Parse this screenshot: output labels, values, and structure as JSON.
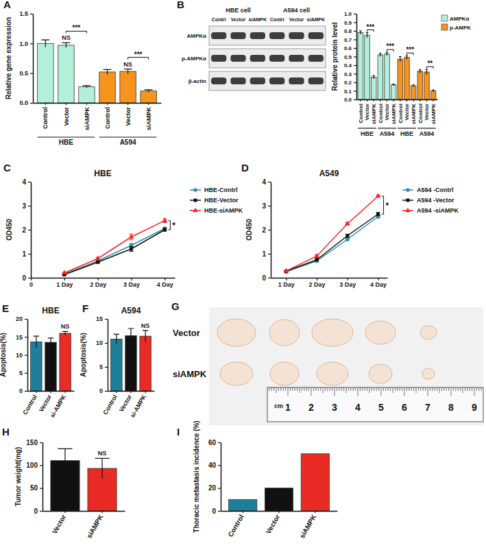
{
  "chart_data": [
    {
      "type": "bar",
      "panel": "A",
      "y_label": "Relative gene expression",
      "categories": [
        "Control",
        "Vector",
        "siAMPK",
        "Control",
        "Vector",
        "siAMPK"
      ],
      "groups": [
        {
          "label": "HBE",
          "from": 0,
          "to": 2
        },
        {
          "label": "A594",
          "from": 3,
          "to": 5
        }
      ],
      "values": [
        1,
        0.97,
        0.27,
        0.52,
        0.53,
        0.2
      ],
      "errors": [
        0.06,
        0.04,
        0.02,
        0.04,
        0.04,
        0.02
      ],
      "colors": [
        "#b3f0d9",
        "#b3f0d9",
        "#b3f0d9",
        "#f7941d",
        "#f7941d",
        "#f7941d"
      ],
      "ylim": [
        0,
        1.5
      ],
      "yticks": [
        {
          "value": 0,
          "label": "0.0"
        },
        0.5,
        {
          "value": 1,
          "label": "1.0"
        },
        1.5
      ],
      "annotations": [
        {
          "text": "NS",
          "from": 1,
          "to": 1
        },
        {
          "text": "***",
          "from": 1,
          "to": 2
        },
        {
          "text": "NS",
          "from": 4,
          "to": 4
        },
        {
          "text": "***",
          "from": 4,
          "to": 5
        }
      ]
    },
    {
      "type": "blot",
      "panel": "B",
      "columns": [
        "Contrl",
        "Vector",
        "siAMPK",
        "Contrl",
        "Vector",
        "siAMPK"
      ],
      "groups": [
        {
          "label": "HBE cell",
          "from": 0,
          "to": 2
        },
        {
          "label": "A594 cell",
          "from": 3,
          "to": 5
        }
      ],
      "rows": [
        "AMPKα",
        "p-AMPKα",
        "β-actin"
      ]
    },
    {
      "type": "bar",
      "y_label": "Relative protein level",
      "categories": [
        "Control",
        "Vector",
        "siAMPK",
        "Control",
        "Vector",
        "siAMPK",
        "Control",
        "Vector",
        "siAMPK",
        "Control",
        "Vector",
        "siAMPK"
      ],
      "groups": [
        {
          "label": "HBE",
          "from": 0,
          "to": 2
        },
        {
          "label": "A594",
          "from": 3,
          "to": 5
        },
        {
          "label": "HBE",
          "from": 6,
          "to": 8
        },
        {
          "label": "A594",
          "from": 9,
          "to": 11
        }
      ],
      "series": [
        {
          "name": "AMPKα",
          "color": "#b3f0d9",
          "values": [
            0.78,
            0.75,
            0.26,
            0.52,
            0.53,
            0.17,
            null,
            null,
            null,
            null,
            null,
            null
          ],
          "errors": [
            0.02,
            0.03,
            0.02,
            0.02,
            0.02,
            0.01,
            null,
            null,
            null,
            null,
            null,
            null
          ]
        },
        {
          "name": "p-AMPK",
          "color": "#f7941d",
          "values": [
            null,
            null,
            null,
            null,
            null,
            null,
            0.47,
            0.49,
            0.16,
            0.33,
            0.32,
            0.1
          ],
          "errors": [
            null,
            null,
            null,
            null,
            null,
            null,
            0.03,
            0.02,
            0.01,
            0.02,
            0.03,
            0.01
          ]
        }
      ],
      "ylim": [
        0,
        1
      ],
      "yticks": [
        {
          "value": 0,
          "label": "0.0"
        },
        0.1,
        0.2,
        0.3,
        0.4,
        0.5,
        0.6,
        0.7,
        0.8,
        0.9,
        {
          "value": 1,
          "label": "1.0"
        }
      ],
      "legend": "top-right",
      "annotations": [
        {
          "text": "***",
          "from": 1,
          "to": 2
        },
        {
          "text": "***",
          "from": 4,
          "to": 5
        },
        {
          "text": "***",
          "from": 7,
          "to": 8
        },
        {
          "text": "**",
          "from": 10,
          "to": 11
        }
      ]
    },
    {
      "type": "line",
      "panel": "C",
      "title": "HBE",
      "y_label": "OD450",
      "x": [
        1,
        2,
        3,
        4
      ],
      "xlim": [
        0,
        4.3
      ],
      "xticks": [
        0,
        {
          "value": 1,
          "label": "1 Day"
        },
        {
          "value": 2,
          "label": "2 Day"
        },
        {
          "value": 3,
          "label": "3 Day"
        },
        {
          "value": 4,
          "label": "4 Day"
        }
      ],
      "ylim": [
        0,
        4
      ],
      "yticks": [
        0,
        1,
        2,
        3,
        4
      ],
      "series": [
        {
          "name": "HBE-Contrl",
          "color": "#2f8ea8",
          "marker": "circle",
          "values": [
            0.15,
            0.7,
            1.35,
            2.05
          ],
          "errors": [
            0.02,
            0.05,
            0.08,
            0.05
          ]
        },
        {
          "name": "HBE-Vector",
          "color": "#111111",
          "marker": "square",
          "values": [
            0.13,
            0.65,
            1.2,
            2.0
          ],
          "errors": [
            0.02,
            0.04,
            0.1,
            0.06
          ]
        },
        {
          "name": "HBE-siAMPK",
          "color": "#ff2020",
          "marker": "triangle",
          "values": [
            0.2,
            0.8,
            1.7,
            2.38
          ],
          "errors": [
            0.02,
            0.05,
            0.12,
            0.08
          ]
        }
      ],
      "legend": "right",
      "annotations": [
        {
          "text": "*",
          "series": [
            1,
            2
          ],
          "at": 3
        }
      ]
    },
    {
      "type": "line",
      "panel": "D",
      "title": "A549",
      "y_label": "OD450",
      "x": [
        1,
        2,
        3,
        4
      ],
      "xlim": [
        0.5,
        4.3
      ],
      "xticks": [
        {
          "value": 1,
          "label": "1 Day"
        },
        {
          "value": 2,
          "label": "2 Day"
        },
        {
          "value": 3,
          "label": "3 Day"
        },
        {
          "value": 4,
          "label": "4 Day"
        }
      ],
      "ylim": [
        0,
        4
      ],
      "yticks": [
        0,
        1,
        2,
        3,
        4
      ],
      "series": [
        {
          "name": "A594 -Contrl",
          "color": "#2f8ea8",
          "marker": "circle",
          "values": [
            0.25,
            0.7,
            1.6,
            2.55
          ],
          "errors": [
            0.02,
            0.04,
            0.05,
            0.06
          ]
        },
        {
          "name": "A594 -Vector",
          "color": "#111111",
          "marker": "square",
          "values": [
            0.27,
            0.75,
            1.75,
            2.65
          ],
          "errors": [
            0.02,
            0.05,
            0.06,
            0.07
          ]
        },
        {
          "name": "A594 -siAMPK",
          "color": "#ff2020",
          "marker": "triangle",
          "values": [
            0.28,
            0.9,
            2.25,
            3.4
          ],
          "errors": [
            0.02,
            0.06,
            0.05,
            0.04
          ]
        }
      ],
      "legend": "right",
      "annotations": [
        {
          "text": "*",
          "series": [
            1,
            2
          ],
          "at": 3
        }
      ]
    },
    {
      "type": "bar",
      "panel": "E",
      "title": "HBE",
      "y_label": "Apoptosis(%)",
      "categories": [
        "Control",
        "Vector",
        "si-AMPK"
      ],
      "values": [
        13.6,
        13.5,
        16.0
      ],
      "errors": [
        1.6,
        1.2,
        0.5
      ],
      "colors": [
        "#1f7f98",
        "#111111",
        "#e82c25"
      ],
      "ylim": [
        0,
        20
      ],
      "yticks": [
        0,
        5,
        10,
        15,
        20
      ],
      "annotations": [
        {
          "text": "NS",
          "from": 2,
          "to": 2
        }
      ]
    },
    {
      "type": "bar",
      "panel": "F",
      "title": "A594",
      "y_label": "Apoptosis(%)",
      "categories": [
        "Control",
        "Vector",
        "si-AMPK"
      ],
      "values": [
        10.8,
        11.5,
        11.4
      ],
      "errors": [
        1.0,
        1.5,
        1.2
      ],
      "colors": [
        "#1f7f98",
        "#111111",
        "#e82c25"
      ],
      "ylim": [
        0,
        15
      ],
      "yticks": [
        0,
        5,
        10,
        15
      ],
      "annotations": [
        {
          "text": "NS",
          "from": 2,
          "to": 2
        }
      ]
    },
    {
      "type": "image",
      "panel": "G",
      "rows": [
        "Vector",
        "siAMPK"
      ],
      "ruler": {
        "unit": "cm",
        "ticks": [
          1,
          2,
          3,
          4,
          5,
          6,
          7,
          8,
          9
        ]
      }
    },
    {
      "type": "bar",
      "panel": "H",
      "y_label": "Tumor weight(mg)",
      "categories": [
        "Vector",
        "siAMPK"
      ],
      "values": [
        110,
        93
      ],
      "errors": [
        26,
        22
      ],
      "colors": [
        "#111111",
        "#e82c25"
      ],
      "ylim": [
        0,
        150
      ],
      "yticks": [
        0,
        50,
        100,
        150
      ],
      "annotations": [
        {
          "text": "NS",
          "from": 1,
          "to": 1
        }
      ]
    },
    {
      "type": "bar",
      "panel": "I",
      "y_label": "Thoracic metastasis incidence (%)",
      "categories": [
        "Control",
        "Vector",
        "siAMPK"
      ],
      "values": [
        10,
        20,
        50
      ],
      "colors": [
        "#1f7f98",
        "#111111",
        "#e82c25"
      ],
      "ylim": [
        0,
        60
      ],
      "yticks": [
        0,
        20,
        40,
        60
      ]
    }
  ]
}
